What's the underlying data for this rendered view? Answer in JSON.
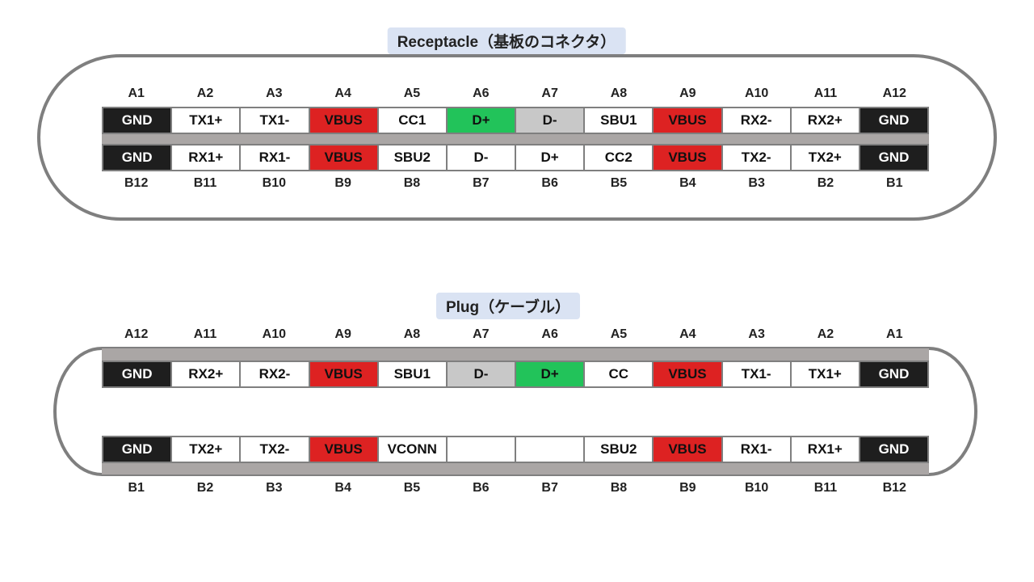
{
  "colors": {
    "gnd": "#1e1e1e",
    "vbus": "#dd2222",
    "d_plus": "#22c35a",
    "d_minus": "#c8c8c8",
    "outline": "#7f7f7f",
    "title_bg": "#dae3f3"
  },
  "receptacle": {
    "title": "Receptacle（基板のコネクタ）",
    "top_labels": [
      "A1",
      "A2",
      "A3",
      "A4",
      "A5",
      "A6",
      "A7",
      "A8",
      "A9",
      "A10",
      "A11",
      "A12"
    ],
    "top_pins": [
      [
        "GND",
        "gnd"
      ],
      [
        "TX1+",
        ""
      ],
      [
        "TX1-",
        ""
      ],
      [
        "VBUS",
        "vbus"
      ],
      [
        "CC1",
        ""
      ],
      [
        "D+",
        "dplus"
      ],
      [
        "D-",
        "dminus"
      ],
      [
        "SBU1",
        ""
      ],
      [
        "VBUS",
        "vbus"
      ],
      [
        "RX2-",
        ""
      ],
      [
        "RX2+",
        ""
      ],
      [
        "GND",
        "gnd"
      ]
    ],
    "bottom_pins": [
      [
        "GND",
        "gnd"
      ],
      [
        "RX1+",
        ""
      ],
      [
        "RX1-",
        ""
      ],
      [
        "VBUS",
        "vbus"
      ],
      [
        "SBU2",
        ""
      ],
      [
        "D-",
        ""
      ],
      [
        "D+",
        ""
      ],
      [
        "CC2",
        ""
      ],
      [
        "VBUS",
        "vbus"
      ],
      [
        "TX2-",
        ""
      ],
      [
        "TX2+",
        ""
      ],
      [
        "GND",
        "gnd"
      ]
    ],
    "bottom_labels": [
      "B12",
      "B11",
      "B10",
      "B9",
      "B8",
      "B7",
      "B6",
      "B5",
      "B4",
      "B3",
      "B2",
      "B1"
    ]
  },
  "plug": {
    "title": "Plug（ケーブル）",
    "top_labels": [
      "A12",
      "A11",
      "A10",
      "A9",
      "A8",
      "A7",
      "A6",
      "A5",
      "A4",
      "A3",
      "A2",
      "A1"
    ],
    "top_pins": [
      [
        "GND",
        "gnd"
      ],
      [
        "RX2+",
        ""
      ],
      [
        "RX2-",
        ""
      ],
      [
        "VBUS",
        "vbus"
      ],
      [
        "SBU1",
        ""
      ],
      [
        "D-",
        "dminus"
      ],
      [
        "D+",
        "dplus"
      ],
      [
        "CC",
        ""
      ],
      [
        "VBUS",
        "vbus"
      ],
      [
        "TX1-",
        ""
      ],
      [
        "TX1+",
        ""
      ],
      [
        "GND",
        "gnd"
      ]
    ],
    "bottom_pins": [
      [
        "GND",
        "gnd"
      ],
      [
        "TX2+",
        ""
      ],
      [
        "TX2-",
        ""
      ],
      [
        "VBUS",
        "vbus"
      ],
      [
        "VCONN",
        ""
      ],
      [
        "",
        ""
      ],
      [
        "",
        ""
      ],
      [
        "SBU2",
        ""
      ],
      [
        "VBUS",
        "vbus"
      ],
      [
        "RX1-",
        ""
      ],
      [
        "RX1+",
        ""
      ],
      [
        "GND",
        "gnd"
      ]
    ],
    "bottom_labels": [
      "B1",
      "B2",
      "B3",
      "B4",
      "B5",
      "B6",
      "B7",
      "B8",
      "B9",
      "B10",
      "B11",
      "B12"
    ]
  }
}
